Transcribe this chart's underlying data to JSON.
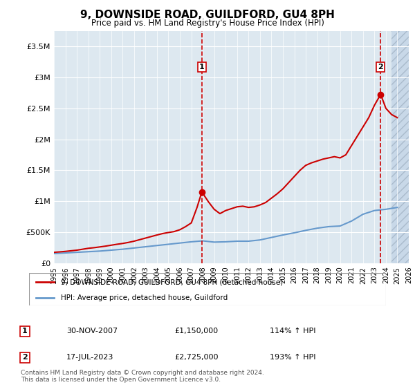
{
  "title": "9, DOWNSIDE ROAD, GUILDFORD, GU4 8PH",
  "subtitle": "Price paid vs. HM Land Registry's House Price Index (HPI)",
  "legend_line1": "9, DOWNSIDE ROAD, GUILDFORD, GU4 8PH (detached house)",
  "legend_line2": "HPI: Average price, detached house, Guildford",
  "sale1_label": "1",
  "sale1_date": "30-NOV-2007",
  "sale1_price": "£1,150,000",
  "sale1_hpi": "114% ↑ HPI",
  "sale2_label": "2",
  "sale2_date": "17-JUL-2023",
  "sale2_price": "£2,725,000",
  "sale2_hpi": "193% ↑ HPI",
  "footer": "Contains HM Land Registry data © Crown copyright and database right 2024.\nThis data is licensed under the Open Government Licence v3.0.",
  "ylim": [
    0,
    3750000
  ],
  "yticks": [
    0,
    500000,
    1000000,
    1500000,
    2000000,
    2500000,
    3000000,
    3500000
  ],
  "ytick_labels": [
    "£0",
    "£500K",
    "£1M",
    "£1.5M",
    "£2M",
    "£2.5M",
    "£3M",
    "£3.5M"
  ],
  "x_start": 1995,
  "x_end": 2026,
  "xticks": [
    1995,
    1996,
    1997,
    1998,
    1999,
    2000,
    2001,
    2002,
    2003,
    2004,
    2005,
    2006,
    2007,
    2008,
    2009,
    2010,
    2011,
    2012,
    2013,
    2014,
    2015,
    2016,
    2017,
    2018,
    2019,
    2020,
    2021,
    2022,
    2023,
    2024,
    2025,
    2026
  ],
  "sale1_x": 2007.92,
  "sale1_y": 1150000,
  "sale2_x": 2023.54,
  "sale2_y": 2725000,
  "red_line_color": "#cc0000",
  "blue_line_color": "#6699cc",
  "bg_main": "#dde8f0",
  "bg_hatch": "#c8d8e8",
  "grid_color": "#ffffff",
  "dashed_line_color": "#cc0000",
  "plot_bg": "#ddeeff",
  "hatch_region_start": 2024.5,
  "red_data_x": [
    1995.0,
    1995.5,
    1996.0,
    1996.5,
    1997.0,
    1997.5,
    1998.0,
    1998.5,
    1999.0,
    1999.5,
    2000.0,
    2000.5,
    2001.0,
    2001.5,
    2002.0,
    2002.5,
    2003.0,
    2003.5,
    2004.0,
    2004.5,
    2005.0,
    2005.5,
    2006.0,
    2006.5,
    2007.0,
    2007.5,
    2007.92,
    2008.5,
    2009.0,
    2009.5,
    2010.0,
    2010.5,
    2011.0,
    2011.5,
    2012.0,
    2012.5,
    2013.0,
    2013.5,
    2014.0,
    2014.5,
    2015.0,
    2015.5,
    2016.0,
    2016.5,
    2017.0,
    2017.5,
    2018.0,
    2018.5,
    2019.0,
    2019.5,
    2020.0,
    2020.5,
    2021.0,
    2021.5,
    2022.0,
    2022.5,
    2023.0,
    2023.54,
    2023.8,
    2024.0,
    2024.5,
    2025.0
  ],
  "red_data_y": [
    175000,
    182000,
    190000,
    200000,
    210000,
    225000,
    240000,
    250000,
    262000,
    275000,
    290000,
    305000,
    318000,
    335000,
    355000,
    380000,
    405000,
    430000,
    455000,
    478000,
    495000,
    510000,
    540000,
    590000,
    650000,
    900000,
    1150000,
    990000,
    870000,
    800000,
    850000,
    880000,
    910000,
    920000,
    900000,
    910000,
    940000,
    980000,
    1050000,
    1120000,
    1200000,
    1300000,
    1400000,
    1500000,
    1580000,
    1620000,
    1650000,
    1680000,
    1700000,
    1720000,
    1700000,
    1750000,
    1900000,
    2050000,
    2200000,
    2350000,
    2550000,
    2725000,
    2600000,
    2500000,
    2400000,
    2350000
  ],
  "blue_data_x": [
    1995.0,
    1996.0,
    1997.0,
    1998.0,
    1999.0,
    2000.0,
    2001.0,
    2002.0,
    2003.0,
    2004.0,
    2005.0,
    2006.0,
    2007.0,
    2008.0,
    2009.0,
    2010.0,
    2011.0,
    2012.0,
    2013.0,
    2014.0,
    2015.0,
    2016.0,
    2017.0,
    2018.0,
    2019.0,
    2020.0,
    2021.0,
    2022.0,
    2023.0,
    2024.0,
    2025.0
  ],
  "blue_data_y": [
    155000,
    165000,
    175000,
    185000,
    195000,
    210000,
    225000,
    245000,
    265000,
    285000,
    305000,
    325000,
    345000,
    360000,
    340000,
    345000,
    355000,
    355000,
    375000,
    415000,
    455000,
    490000,
    530000,
    565000,
    590000,
    600000,
    680000,
    790000,
    850000,
    870000,
    900000
  ]
}
